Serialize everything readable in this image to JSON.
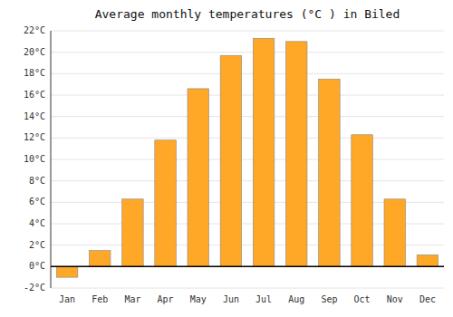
{
  "chart_data": {
    "type": "bar",
    "title": "Average monthly temperatures (°C ) in Biled",
    "categories": [
      "Jan",
      "Feb",
      "Mar",
      "Apr",
      "May",
      "Jun",
      "Jul",
      "Aug",
      "Sep",
      "Oct",
      "Nov",
      "Dec"
    ],
    "values": [
      -1.0,
      1.5,
      6.3,
      11.8,
      16.6,
      19.7,
      21.3,
      21.0,
      17.5,
      12.3,
      6.3,
      1.1
    ],
    "color": "#FFA726",
    "ylim": [
      -2,
      22
    ],
    "yticks": [
      {
        "value": -2,
        "label": "-2°C"
      },
      {
        "value": 0,
        "label": "0°C"
      },
      {
        "value": 2,
        "label": "2°C"
      },
      {
        "value": 4,
        "label": "4°C"
      },
      {
        "value": 6,
        "label": "6°C"
      },
      {
        "value": 8,
        "label": "8°C"
      },
      {
        "value": 10,
        "label": "10°C"
      },
      {
        "value": 12,
        "label": "12°C"
      },
      {
        "value": 14,
        "label": "14°C"
      },
      {
        "value": 16,
        "label": "16°C"
      },
      {
        "value": 18,
        "label": "18°C"
      },
      {
        "value": 20,
        "label": "20°C"
      },
      {
        "value": 22,
        "label": "22°C"
      }
    ],
    "grid": true
  }
}
